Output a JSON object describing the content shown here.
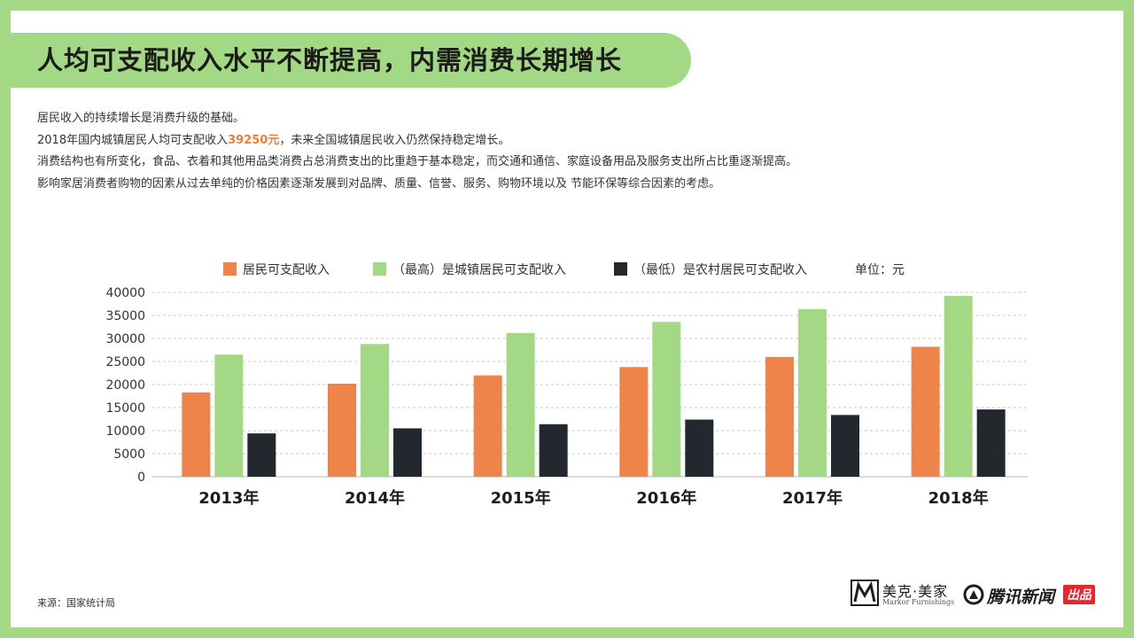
{
  "header": {
    "title": "人均可支配收入水平不断提高，内需消费长期增长"
  },
  "description": {
    "line1": "居民收入的持续增长是消费升级的基础。",
    "line2_prefix": "2018年国内城镇居民人均可支配收入",
    "line2_highlight": "39250元",
    "line2_suffix": "，未来全国城镇居民收入仍然保持稳定增长。",
    "line3": "消费结构也有所变化，食品、衣着和其他用品类消费占总消费支出的比重趋于基本稳定，而交通和通信、家庭设备用品及服务支出所占比重逐渐提高。",
    "line4": "影响家居消费者购物的因素从过去单纯的价格因素逐渐发展到对品牌、质量、信誉、服务、购物环境以及 节能环保等综合因素的考虑。"
  },
  "legend": {
    "unit": "单位：元",
    "items": [
      {
        "label": "居民可支配收入"
      },
      {
        "label": "（最高）是城镇居民可支配收入"
      },
      {
        "label": "（最低）是农村居民可支配收入"
      }
    ]
  },
  "chart_data": {
    "type": "bar",
    "title": "",
    "xlabel": "",
    "ylabel": "",
    "unit": "元",
    "categories": [
      "2013年",
      "2014年",
      "2015年",
      "2016年",
      "2017年",
      "2018年"
    ],
    "series": [
      {
        "name": "居民可支配收入",
        "color": "#ee844a",
        "values": [
          18300,
          20200,
          22000,
          23800,
          26000,
          28200
        ]
      },
      {
        "name": "（最高）是城镇居民可支配收入",
        "color": "#a3d884",
        "values": [
          26500,
          28800,
          31200,
          33600,
          36400,
          39250
        ]
      },
      {
        "name": "（最低）是农村居民可支配收入",
        "color": "#23272e",
        "values": [
          9400,
          10500,
          11400,
          12400,
          13400,
          14600
        ]
      }
    ],
    "ylim": [
      0,
      40000
    ],
    "yticks": [
      0,
      5000,
      10000,
      15000,
      20000,
      25000,
      30000,
      35000,
      40000
    ],
    "grid": true,
    "legend_position": "top"
  },
  "footer": {
    "source": "来源：国家统计局",
    "brand1_name": "美克·美家",
    "brand1_sub": "Markor Furnishings",
    "brand2_name": "腾讯新闻",
    "brand2_badge": "出品"
  }
}
